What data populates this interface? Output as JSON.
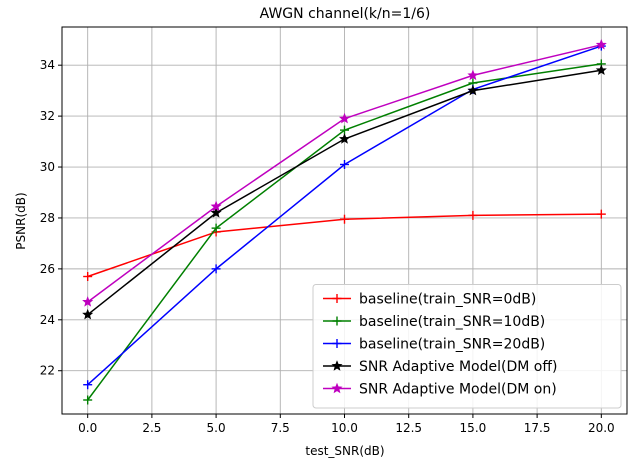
{
  "chart_data": {
    "type": "line",
    "title": "AWGN channel(k/n=1/6)",
    "xlabel": "test_SNR(dB)",
    "ylabel": "PSNR(dB)",
    "xlim": [
      -1.0,
      21.0
    ],
    "ylim": [
      20.3,
      35.5
    ],
    "xticks": [
      "0.0",
      "2.5",
      "5.0",
      "7.5",
      "10.0",
      "12.5",
      "15.0",
      "17.5",
      "20.0"
    ],
    "yticks": [
      "22",
      "24",
      "26",
      "28",
      "30",
      "32",
      "34"
    ],
    "grid": true,
    "legend_position": "lower-right",
    "x": [
      0,
      5,
      10,
      15,
      20
    ],
    "series": [
      {
        "name": "baseline(train_SNR=0dB)",
        "color": "#ff0000",
        "marker": "plus",
        "values": [
          25.7,
          27.45,
          27.95,
          28.1,
          28.15
        ]
      },
      {
        "name": "baseline(train_SNR=10dB)",
        "color": "#008000",
        "marker": "plus",
        "values": [
          20.85,
          27.6,
          31.45,
          33.3,
          34.05
        ]
      },
      {
        "name": "baseline(train_SNR=20dB)",
        "color": "#0000ff",
        "marker": "plus",
        "values": [
          21.45,
          26.0,
          30.1,
          33.05,
          34.75
        ]
      },
      {
        "name": "SNR Adaptive Model(DM off)",
        "color": "#000000",
        "marker": "star",
        "values": [
          24.2,
          28.2,
          31.1,
          33.0,
          33.8
        ]
      },
      {
        "name": "SNR Adaptive Model(DM on)",
        "color": "#bf00bf",
        "marker": "star",
        "values": [
          24.7,
          28.45,
          31.9,
          33.6,
          34.8
        ]
      }
    ]
  }
}
